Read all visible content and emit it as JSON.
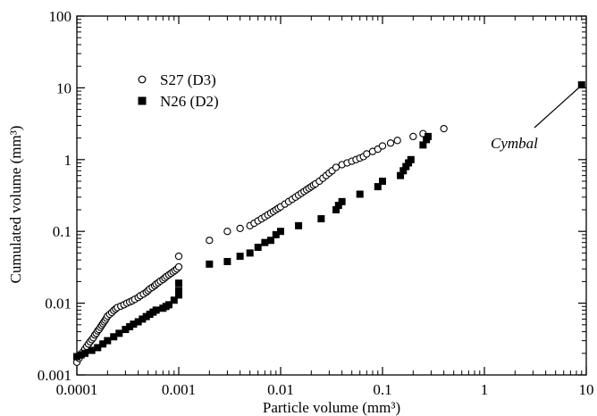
{
  "chart_data": {
    "type": "scatter",
    "xlabel": "Particle volume (mm³)",
    "ylabel": "Cumulated volume (mm³)",
    "xscale": "log",
    "yscale": "log",
    "xlim": [
      0.0001,
      10
    ],
    "ylim": [
      0.001,
      100
    ],
    "x_tick_labels": [
      "0.0001",
      "0.001",
      "0.01",
      "0.1",
      "1",
      "10"
    ],
    "y_tick_labels": [
      "0.001",
      "0.01",
      "0.1",
      "1",
      "10",
      "100"
    ],
    "grid": false,
    "legend_position": "top-left",
    "series": [
      {
        "name": "S27 (D3)",
        "marker": "open-circle",
        "color": "#000000",
        "x": [
          0.0001,
          0.000105,
          0.00011,
          0.000115,
          0.00012,
          0.000125,
          0.00013,
          0.000135,
          0.00014,
          0.000145,
          0.00015,
          0.000155,
          0.00016,
          0.000165,
          0.00017,
          0.000175,
          0.00018,
          0.000185,
          0.00019,
          0.000195,
          0.0002,
          0.00021,
          0.00022,
          0.00023,
          0.00024,
          0.00025,
          0.00027,
          0.00029,
          0.00031,
          0.00033,
          0.00035,
          0.00037,
          0.0004,
          0.00042,
          0.00045,
          0.00048,
          0.0005,
          0.00052,
          0.00055,
          0.00058,
          0.0006,
          0.00063,
          0.00066,
          0.0007,
          0.00073,
          0.00076,
          0.0008,
          0.00084,
          0.00088,
          0.00092,
          0.00096,
          0.001,
          0.001,
          0.002,
          0.003,
          0.004,
          0.005,
          0.0055,
          0.006,
          0.0065,
          0.007,
          0.0075,
          0.008,
          0.0085,
          0.009,
          0.0095,
          0.01,
          0.011,
          0.012,
          0.013,
          0.014,
          0.015,
          0.016,
          0.017,
          0.018,
          0.019,
          0.02,
          0.021,
          0.022,
          0.024,
          0.026,
          0.028,
          0.03,
          0.032,
          0.035,
          0.04,
          0.045,
          0.05,
          0.055,
          0.06,
          0.065,
          0.07,
          0.08,
          0.09,
          0.1,
          0.12,
          0.14,
          0.2,
          0.25,
          0.4
        ],
        "y": [
          0.0015,
          0.0017,
          0.0019,
          0.0021,
          0.0023,
          0.0025,
          0.0027,
          0.0029,
          0.0031,
          0.0033,
          0.0036,
          0.0038,
          0.0041,
          0.0043,
          0.0046,
          0.0049,
          0.0052,
          0.0055,
          0.0058,
          0.0062,
          0.0066,
          0.007,
          0.0074,
          0.0079,
          0.0083,
          0.0087,
          0.0091,
          0.0095,
          0.01,
          0.0104,
          0.0108,
          0.0113,
          0.012,
          0.0127,
          0.0134,
          0.0142,
          0.015,
          0.0158,
          0.0166,
          0.0175,
          0.0184,
          0.0193,
          0.0203,
          0.0214,
          0.0225,
          0.0236,
          0.0248,
          0.026,
          0.0273,
          0.0286,
          0.03,
          0.032,
          0.045,
          0.075,
          0.1,
          0.11,
          0.12,
          0.13,
          0.14,
          0.15,
          0.16,
          0.17,
          0.18,
          0.19,
          0.2,
          0.21,
          0.22,
          0.24,
          0.26,
          0.28,
          0.3,
          0.32,
          0.34,
          0.36,
          0.38,
          0.4,
          0.42,
          0.44,
          0.46,
          0.5,
          0.55,
          0.6,
          0.65,
          0.7,
          0.78,
          0.85,
          0.9,
          0.95,
          1.0,
          1.05,
          1.1,
          1.2,
          1.3,
          1.4,
          1.55,
          1.7,
          1.85,
          2.1,
          2.3,
          2.7
        ]
      },
      {
        "name": "N26 (D2)",
        "marker": "filled-square",
        "color": "#000000",
        "x": [
          0.0001,
          0.00011,
          0.00012,
          0.00014,
          0.00016,
          0.00018,
          0.0002,
          0.00023,
          0.00026,
          0.0003,
          0.00033,
          0.00036,
          0.0004,
          0.00044,
          0.00048,
          0.00052,
          0.00056,
          0.0006,
          0.0007,
          0.00075,
          0.0008,
          0.0009,
          0.001,
          0.001,
          0.001,
          0.002,
          0.003,
          0.004,
          0.005,
          0.006,
          0.007,
          0.008,
          0.009,
          0.01,
          0.015,
          0.025,
          0.035,
          0.037,
          0.04,
          0.06,
          0.09,
          0.1,
          0.15,
          0.16,
          0.17,
          0.18,
          0.19,
          0.25,
          0.27,
          0.28,
          9.0
        ],
        "y": [
          0.0018,
          0.0019,
          0.002,
          0.0022,
          0.0024,
          0.0027,
          0.003,
          0.0034,
          0.0038,
          0.0043,
          0.0047,
          0.0051,
          0.0055,
          0.006,
          0.0065,
          0.007,
          0.0075,
          0.008,
          0.0085,
          0.009,
          0.0095,
          0.011,
          0.013,
          0.015,
          0.019,
          0.035,
          0.038,
          0.045,
          0.05,
          0.06,
          0.07,
          0.075,
          0.09,
          0.1,
          0.12,
          0.15,
          0.2,
          0.23,
          0.26,
          0.33,
          0.42,
          0.5,
          0.6,
          0.7,
          0.8,
          0.9,
          1.0,
          1.6,
          1.9,
          2.1,
          11.0
        ]
      }
    ],
    "annotations": [
      {
        "text": "Cymbal",
        "x": 9.0,
        "y": 11.0
      }
    ]
  }
}
